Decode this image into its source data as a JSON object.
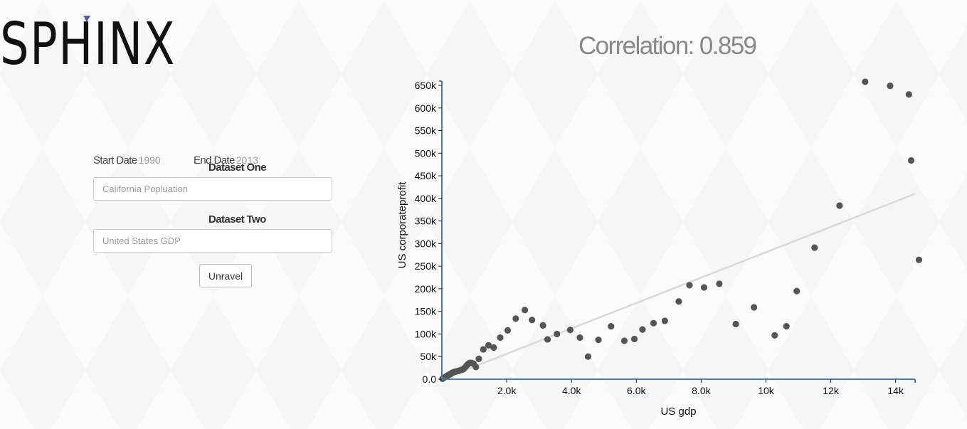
{
  "logo": {
    "text": "SPHINX"
  },
  "form": {
    "start_date_label": "Start Date",
    "start_date_value": "1990",
    "end_date_label": "End Date",
    "end_date_value": "2013",
    "dataset_one_label": "Dataset One",
    "dataset_one_placeholder": "California Popluation",
    "dataset_two_label": "Dataset Two",
    "dataset_two_placeholder": "United States GDP",
    "button_label": "Unravel"
  },
  "correlation_text": "Correlation: 0.859",
  "colors": {
    "point": "#555555",
    "trend": "#d9d9d9",
    "axis": "#4a7db5",
    "logo_mark": "#4f5fa8"
  },
  "chart_data": {
    "type": "scatter",
    "xlabel": "US gdp",
    "ylabel": "US corporateprofit",
    "xlim": [
      0,
      14600
    ],
    "ylim": [
      0,
      650000
    ],
    "x_ticks": [
      2000,
      4000,
      6000,
      8000,
      10000,
      12000,
      14000
    ],
    "x_tick_labels": [
      "2.0k",
      "4.0k",
      "6.0k",
      "8.0k",
      "10k",
      "12k",
      "14k"
    ],
    "y_ticks": [
      0,
      50000,
      100000,
      150000,
      200000,
      250000,
      300000,
      350000,
      400000,
      450000,
      500000,
      550000,
      600000,
      650000
    ],
    "y_tick_labels": [
      "0.0",
      "50k",
      "100k",
      "150k",
      "200k",
      "250k",
      "300k",
      "350k",
      "400k",
      "450k",
      "500k",
      "550k",
      "600k",
      "650k"
    ],
    "grid": false,
    "trendline": {
      "x": [
        0,
        14600
      ],
      "y": [
        0,
        410000
      ]
    },
    "points": [
      {
        "x": 20,
        "y": 1000
      },
      {
        "x": 50,
        "y": 2500
      },
      {
        "x": 80,
        "y": 4000
      },
      {
        "x": 110,
        "y": 5000
      },
      {
        "x": 140,
        "y": 6500
      },
      {
        "x": 170,
        "y": 8000
      },
      {
        "x": 200,
        "y": 9000
      },
      {
        "x": 230,
        "y": 10500
      },
      {
        "x": 260,
        "y": 11000
      },
      {
        "x": 290,
        "y": 13000
      },
      {
        "x": 320,
        "y": 14000
      },
      {
        "x": 350,
        "y": 15000
      },
      {
        "x": 380,
        "y": 16000
      },
      {
        "x": 410,
        "y": 16500
      },
      {
        "x": 440,
        "y": 17000
      },
      {
        "x": 470,
        "y": 17500
      },
      {
        "x": 500,
        "y": 18000
      },
      {
        "x": 540,
        "y": 19000
      },
      {
        "x": 580,
        "y": 20000
      },
      {
        "x": 620,
        "y": 21000
      },
      {
        "x": 660,
        "y": 22000
      },
      {
        "x": 700,
        "y": 25000
      },
      {
        "x": 760,
        "y": 30000
      },
      {
        "x": 800,
        "y": 33000
      },
      {
        "x": 860,
        "y": 36000
      },
      {
        "x": 920,
        "y": 36000
      },
      {
        "x": 980,
        "y": 34000
      },
      {
        "x": 1050,
        "y": 27000
      },
      {
        "x": 1140,
        "y": 45000
      },
      {
        "x": 1280,
        "y": 66000
      },
      {
        "x": 1440,
        "y": 75000
      },
      {
        "x": 1600,
        "y": 70000
      },
      {
        "x": 1800,
        "y": 92000
      },
      {
        "x": 2030,
        "y": 108000
      },
      {
        "x": 2280,
        "y": 134000
      },
      {
        "x": 2560,
        "y": 153000
      },
      {
        "x": 2780,
        "y": 131000
      },
      {
        "x": 3120,
        "y": 119000
      },
      {
        "x": 3260,
        "y": 88000
      },
      {
        "x": 3550,
        "y": 100000
      },
      {
        "x": 3960,
        "y": 109000
      },
      {
        "x": 4260,
        "y": 92000
      },
      {
        "x": 4510,
        "y": 50000
      },
      {
        "x": 4830,
        "y": 87000
      },
      {
        "x": 5220,
        "y": 117000
      },
      {
        "x": 5630,
        "y": 85000
      },
      {
        "x": 5940,
        "y": 89000
      },
      {
        "x": 6190,
        "y": 110000
      },
      {
        "x": 6530,
        "y": 124000
      },
      {
        "x": 6880,
        "y": 129000
      },
      {
        "x": 7310,
        "y": 172000
      },
      {
        "x": 7640,
        "y": 208000
      },
      {
        "x": 8090,
        "y": 203000
      },
      {
        "x": 8560,
        "y": 211000
      },
      {
        "x": 9070,
        "y": 122000
      },
      {
        "x": 9630,
        "y": 159000
      },
      {
        "x": 10270,
        "y": 97000
      },
      {
        "x": 10630,
        "y": 117000
      },
      {
        "x": 10950,
        "y": 195000
      },
      {
        "x": 11500,
        "y": 291000
      },
      {
        "x": 12270,
        "y": 384000
      },
      {
        "x": 13060,
        "y": 658000
      },
      {
        "x": 13830,
        "y": 649000
      },
      {
        "x": 14410,
        "y": 630000
      },
      {
        "x": 14480,
        "y": 484000
      },
      {
        "x": 14720,
        "y": 264000
      }
    ]
  }
}
